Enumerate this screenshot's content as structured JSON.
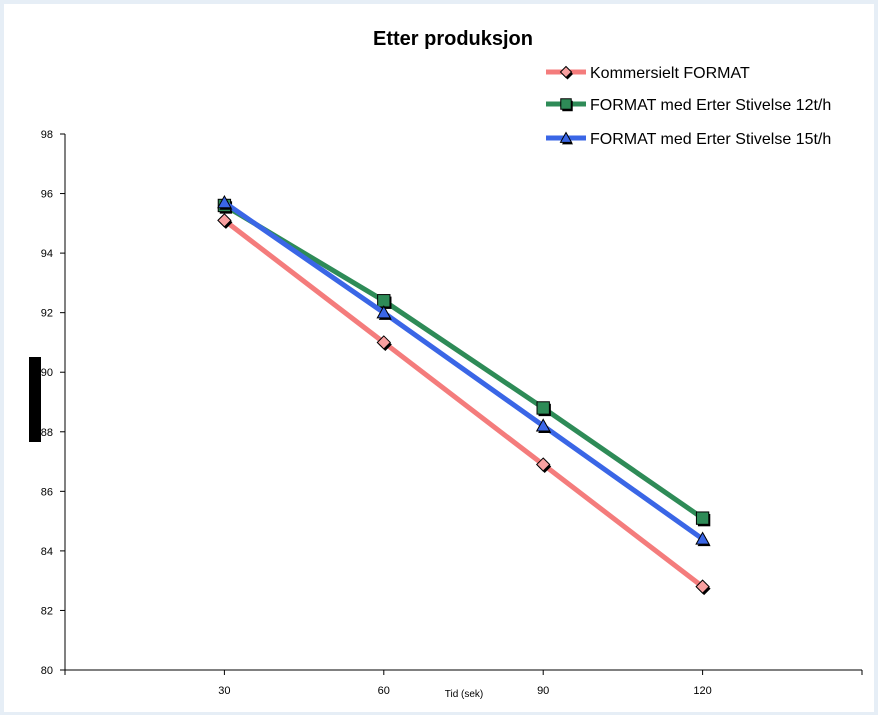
{
  "chart_data": {
    "type": "line",
    "title": "Etter produksjon",
    "xlabel": "Tid (sek)",
    "ylabel": "",
    "x": [
      30,
      60,
      90,
      120
    ],
    "xlim": [
      0,
      150
    ],
    "ylim": [
      80,
      98
    ],
    "yticks": [
      80,
      82,
      84,
      86,
      88,
      90,
      92,
      94,
      96,
      98
    ],
    "legend_position": "top-right",
    "grid": false,
    "series": [
      {
        "name": "Kommersielt FORMAT",
        "values": [
          95.1,
          91.0,
          86.9,
          82.8
        ],
        "color": "#f47c7c",
        "marker": "diamond",
        "marker_fill": "#f8a0a0"
      },
      {
        "name": "FORMAT med Erter Stivelse 12t/h",
        "values": [
          95.6,
          92.4,
          88.8,
          85.1
        ],
        "color": "#2e8b57",
        "marker": "square",
        "marker_fill": "#2e8b57"
      },
      {
        "name": "FORMAT med Erter Stivelse 15t/h",
        "values": [
          95.7,
          92.0,
          88.2,
          84.4
        ],
        "color": "#3a66e6",
        "marker": "triangle",
        "marker_fill": "#3a66e6"
      }
    ]
  }
}
